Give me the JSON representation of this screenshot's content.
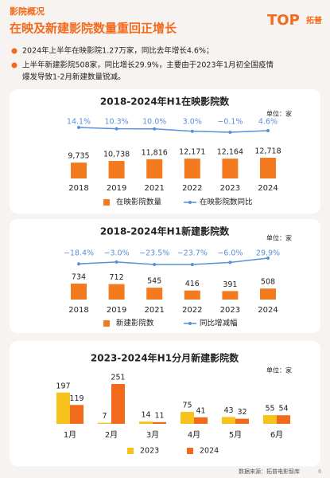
{
  "header": {
    "section": "影院概况",
    "title": "在映及新建影院数量重回正增长",
    "logo": "TOP",
    "logo_cn": "拓普"
  },
  "bullets": [
    "2024年上半年在映影院1.27万家，同比去年增长4.6%；",
    "上半年新建影院508家，同比增长29.9%，主要由于2023年1月初全国疫情",
    "爆发导致1-2月新建数量锐减。"
  ],
  "chart_data": [
    {
      "type": "combo",
      "title": "2018-2024年H1在映影院数",
      "unit": "单位：家",
      "categories": [
        "2018",
        "2019",
        "2021",
        "2022",
        "2023",
        "2024"
      ],
      "series": [
        {
          "name": "在映影院数量",
          "type": "bar",
          "color": "#f47a20",
          "values": [
            9735,
            10738,
            11816,
            12171,
            12164,
            12718
          ],
          "value_labels": [
            "9,735",
            "10,738",
            "11,816",
            "12,171",
            "12,164",
            "12,718"
          ]
        },
        {
          "name": "在映影院数同比",
          "type": "line",
          "color": "#5b8fd6",
          "values": [
            14.1,
            10.3,
            10.0,
            3.0,
            -0.1,
            4.6
          ],
          "value_labels": [
            "14.1%",
            "10.3%",
            "10.0%",
            "3.0%",
            "−0.1%",
            "4.6%"
          ]
        }
      ]
    },
    {
      "type": "combo",
      "title": "2018-2024年H1新建影院数",
      "unit": "单位：家",
      "categories": [
        "2018",
        "2019",
        "2021",
        "2022",
        "2023",
        "2024"
      ],
      "series": [
        {
          "name": "新建影院数",
          "type": "bar",
          "color": "#f47a20",
          "values": [
            734,
            712,
            545,
            416,
            391,
            508
          ]
        },
        {
          "name": "同比增减幅",
          "type": "line",
          "color": "#5b8fd6",
          "values": [
            -18.4,
            -3.0,
            -23.5,
            -23.7,
            -6.0,
            29.9
          ],
          "value_labels": [
            "−18.4%",
            "−3.0%",
            "−23.5%",
            "−23.7%",
            "−6.0%",
            "29.9%"
          ]
        }
      ]
    },
    {
      "type": "bar",
      "title": "2023-2024年H1分月新建影院数",
      "unit": "单位：家",
      "categories": [
        "1月",
        "2月",
        "3月",
        "4月",
        "5月",
        "6月"
      ],
      "series": [
        {
          "name": "2023",
          "color": "#f8c21c",
          "values": [
            197,
            7,
            14,
            75,
            43,
            55
          ]
        },
        {
          "name": "2024",
          "color": "#f26a1b",
          "values": [
            119,
            251,
            11,
            41,
            32,
            54
          ]
        }
      ]
    }
  ],
  "footer": {
    "source": "数据来源：拓普电影智库",
    "page": "6"
  }
}
